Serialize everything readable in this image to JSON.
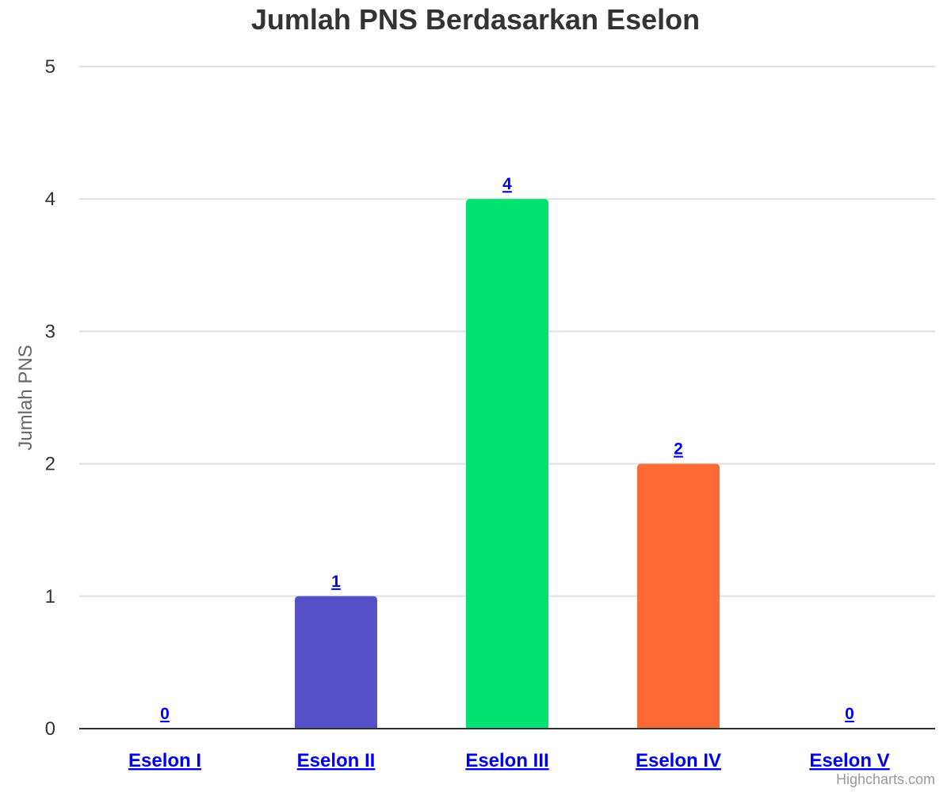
{
  "chart_data": {
    "type": "bar",
    "title": "Jumlah PNS Berdasarkan Eselon",
    "ylabel": "Jumlah PNS",
    "xlabel": "",
    "categories": [
      "Eselon I",
      "Eselon II",
      "Eselon III",
      "Eselon IV",
      "Eselon V"
    ],
    "values": [
      0,
      1,
      4,
      2,
      0
    ],
    "data_labels": [
      "0",
      "1",
      "4",
      "2",
      "0"
    ],
    "ylim": [
      0,
      5
    ],
    "yticks": [
      "0",
      "1",
      "2",
      "3",
      "4",
      "5"
    ],
    "grid": true,
    "legend": "none",
    "colors": [
      "#7cb5ec",
      "#5651c8",
      "#00e272",
      "#fe6a35",
      "#6b8abc"
    ]
  },
  "credits": "Highcharts.com"
}
